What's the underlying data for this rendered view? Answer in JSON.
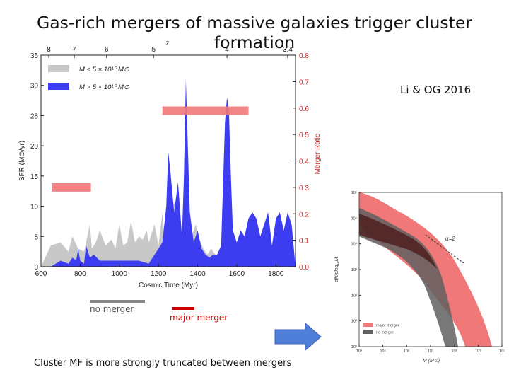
{
  "title": "Gas-rich mergers of massive galaxies trigger cluster formation",
  "credit": "Li & OG 2016",
  "legend_notes": {
    "no_merger": "no merger",
    "major_merger": "major merger"
  },
  "footer": "Cluster MF is more strongly truncated between mergers",
  "colors": {
    "grey_fill": "#c8c8c8",
    "blue_fill": "#3c3cf0",
    "merger_bar": "#f07878",
    "note_grey": "#888888",
    "note_red": "#cc0000",
    "arrow": "#4f7fd8"
  },
  "chart_data": [
    {
      "type": "area",
      "title": "",
      "xlabel": "Cosmic Time (Myr)",
      "ylabel": "SFR (M⊙/yr)",
      "y2label": "Merger Ratio",
      "top_axis_label": "z",
      "xlim": [
        600,
        1900
      ],
      "ylim": [
        0,
        35
      ],
      "y2lim": [
        0.0,
        0.8
      ],
      "xticks": [
        "600",
        "800",
        "1000",
        "1200",
        "1400",
        "1600",
        "1800"
      ],
      "yticks": [
        "0",
        "5",
        "10",
        "15",
        "20",
        "25",
        "30",
        "35"
      ],
      "y2ticks": [
        "0.0",
        "0.1",
        "0.2",
        "0.3",
        "0.4",
        "0.5",
        "0.6",
        "0.7",
        "0.8"
      ],
      "top_ticks": [
        {
          "label": "8",
          "time": 640
        },
        {
          "label": "7",
          "time": 770
        },
        {
          "label": "6",
          "time": 935
        },
        {
          "label": "5",
          "time": 1175
        },
        {
          "label": "4",
          "time": 1550
        },
        {
          "label": "3.4",
          "time": 1860
        }
      ],
      "legend": [
        {
          "label": "M < 5 × 10¹⁰ M⊙",
          "color": "#c8c8c8"
        },
        {
          "label": "M > 5 × 10¹⁰ M⊙",
          "color": "#3c3cf0"
        }
      ],
      "series": [
        {
          "name": "M < 5 x 10^10 Msun",
          "x": [
            600,
            650,
            700,
            740,
            760,
            790,
            820,
            850,
            860,
            880,
            900,
            930,
            960,
            980,
            1000,
            1020,
            1040,
            1060,
            1080,
            1100,
            1120,
            1140,
            1150,
            1160,
            1180,
            1200,
            1220,
            1230,
            1250,
            1270,
            1290,
            1310,
            1330,
            1350,
            1370,
            1390,
            1410,
            1430,
            1450,
            1470,
            1500,
            1530,
            1560,
            1600,
            1650,
            1700,
            1750,
            1800,
            1850,
            1900
          ],
          "y": [
            0,
            3.5,
            4,
            2.5,
            5,
            3,
            2.5,
            7,
            3,
            4,
            6,
            3.5,
            4.5,
            3,
            7,
            3.5,
            4,
            7.5,
            4,
            5,
            4.5,
            6,
            4,
            5,
            7,
            3.5,
            9,
            5,
            6.5,
            10,
            11,
            4,
            6,
            8,
            5,
            7,
            4.5,
            3,
            2,
            3,
            1.5,
            2,
            2.5,
            2,
            2.5,
            2,
            3,
            2.5,
            2,
            0
          ]
        },
        {
          "name": "M > 5 x 10^10 Msun",
          "x": [
            600,
            650,
            700,
            740,
            760,
            780,
            790,
            800,
            820,
            830,
            850,
            870,
            900,
            950,
            1000,
            1050,
            1100,
            1150,
            1200,
            1220,
            1240,
            1250,
            1260,
            1280,
            1300,
            1320,
            1330,
            1340,
            1350,
            1360,
            1380,
            1400,
            1420,
            1440,
            1460,
            1480,
            1500,
            1520,
            1540,
            1550,
            1560,
            1570,
            1580,
            1600,
            1620,
            1640,
            1660,
            1680,
            1700,
            1720,
            1740,
            1760,
            1780,
            1800,
            1820,
            1840,
            1860,
            1880,
            1900
          ],
          "y": [
            0,
            0,
            1,
            0.5,
            1.5,
            1,
            3,
            1,
            0.5,
            3.5,
            1.5,
            2,
            1,
            1,
            1,
            1,
            1,
            0.5,
            3,
            4,
            10,
            19,
            16,
            9,
            14,
            5,
            15,
            31,
            20,
            9,
            4,
            6,
            3,
            2,
            1.5,
            2,
            2,
            3.5,
            24,
            28,
            26,
            15,
            6,
            4,
            6,
            5,
            8,
            9,
            8,
            5,
            7,
            9,
            3.5,
            8,
            9,
            6,
            9,
            7,
            0
          ]
        },
        {
          "name": "merger ratio bars",
          "bars": [
            {
              "x_start": 655,
              "x_end": 855,
              "ratio": 0.3
            },
            {
              "x_start": 1220,
              "x_end": 1660,
              "ratio": 0.59
            }
          ]
        }
      ]
    },
    {
      "type": "area",
      "title": "",
      "xlabel": "M (M⊙)",
      "ylabel": "dN/dlog₁₀M",
      "annotation": "α=2",
      "xticks": [
        "10⁴",
        "10⁵",
        "10⁶",
        "10⁷",
        "10⁸",
        "10⁹",
        "10¹"
      ],
      "yticks": [
        "10⁰",
        "10¹",
        "10²",
        "10³",
        "10⁴",
        "10⁵",
        "10⁶"
      ],
      "legend": [
        {
          "label": "major merger",
          "color": "#f07878"
        },
        {
          "label": "no merger",
          "color": "#606060"
        }
      ]
    }
  ]
}
